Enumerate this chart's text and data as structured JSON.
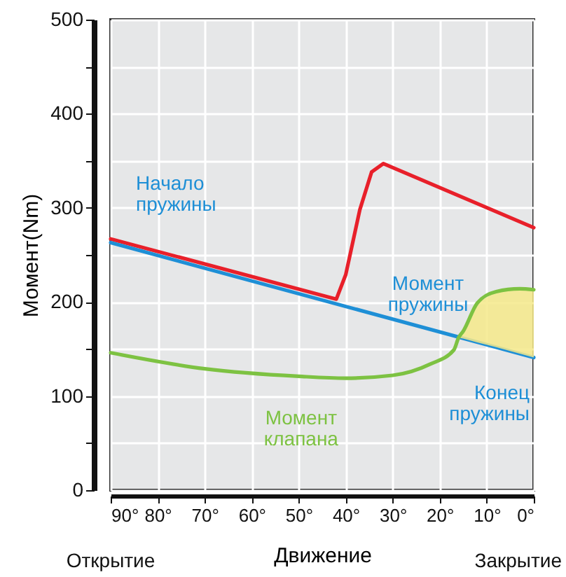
{
  "chart_data": {
    "type": "line",
    "xlabel": "Движение",
    "ylabel": "Момент(Nm)",
    "xlim": [
      90,
      0
    ],
    "xticks": [
      {
        "value": 90,
        "label": "90°"
      },
      {
        "value": 80,
        "label": "80°"
      },
      {
        "value": 70,
        "label": "70°"
      },
      {
        "value": 60,
        "label": "60°"
      },
      {
        "value": 50,
        "label": "50°"
      },
      {
        "value": 40,
        "label": "40°"
      },
      {
        "value": 30,
        "label": "30°"
      },
      {
        "value": 20,
        "label": "20°"
      },
      {
        "value": 10,
        "label": "10°"
      },
      {
        "value": 0,
        "label": "0°"
      }
    ],
    "ylim": [
      0,
      500
    ],
    "yticks": [
      0,
      {
        "value": 50,
        "label": null
      },
      100,
      {
        "value": 150,
        "label": null
      },
      200,
      {
        "value": 250,
        "label": null
      },
      300,
      {
        "value": 350,
        "label": null
      },
      400,
      {
        "value": 450,
        "label": null
      },
      500
    ],
    "grid": true,
    "series": [
      {
        "color": "#e8202a",
        "x": [
          90,
          42,
          40,
          37,
          34.5,
          32,
          0
        ],
        "values": [
          267,
          203,
          229,
          298,
          338,
          347,
          279
        ]
      },
      {
        "name": "Момент пружины",
        "color": "#1e8fd6",
        "x": [
          90,
          0
        ],
        "values": [
          263,
          141
        ]
      },
      {
        "name": "Момент клапана",
        "color": "#7dc242",
        "x": [
          90,
          70,
          50,
          40,
          30,
          22,
          17,
          16,
          15,
          12,
          8,
          3,
          0
        ],
        "values": [
          146,
          129,
          121,
          119,
          122,
          134,
          149,
          162,
          169,
          199,
          211,
          214,
          213
        ],
        "lower": [
          null,
          null,
          null,
          null,
          null,
          null,
          null,
          162,
          161,
          157,
          152,
          145,
          141
        ],
        "upper": [
          null,
          null,
          null,
          null,
          null,
          null,
          null,
          162,
          169,
          199,
          211,
          214,
          213
        ]
      }
    ],
    "annotations": [
      {
        "text": "Начало пружины",
        "x": 90,
        "y": 263
      },
      {
        "text": "Конец пружины",
        "x": 0,
        "y": 141
      },
      "Открытие",
      "Закрытие"
    ]
  }
}
